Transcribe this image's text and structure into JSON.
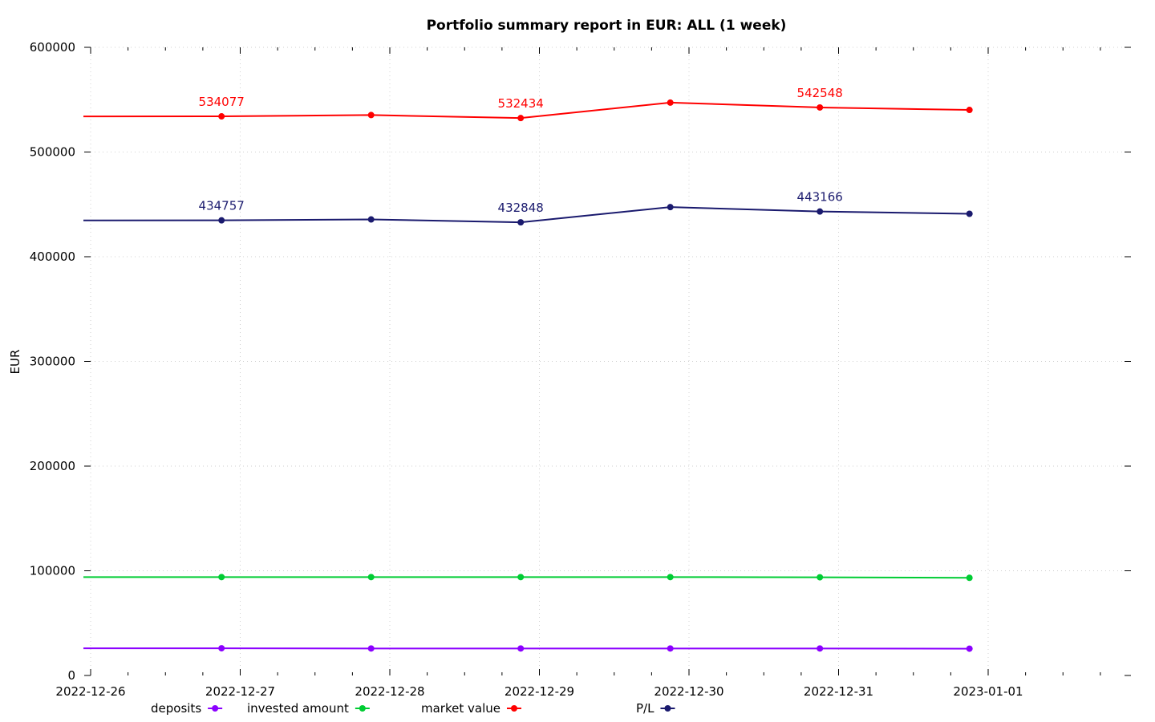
{
  "chart_data": {
    "type": "line",
    "title": "Portfolio summary report in EUR: ALL (1 week)",
    "xlabel": "",
    "ylabel": "EUR",
    "ylim": [
      0,
      600000
    ],
    "yticks": [
      0,
      100000,
      200000,
      300000,
      400000,
      500000,
      600000
    ],
    "xlim": [
      "2022-12-26",
      "2023-01-01T23:59"
    ],
    "xticks": [
      "2022-12-26",
      "2022-12-27",
      "2022-12-28",
      "2022-12-29",
      "2022-12-30",
      "2022-12-31",
      "2023-01-01"
    ],
    "grid": true,
    "legend_position": "bottom",
    "x": [
      "2022-12-26",
      "2022-12-27",
      "2022-12-28",
      "2022-12-29",
      "2022-12-30",
      "2022-12-31",
      "2023-01-01"
    ],
    "series": [
      {
        "name": "deposits",
        "color": "#8b00ff",
        "values": [
          26000,
          26000,
          25800,
          25800,
          25800,
          25800,
          25600
        ],
        "labels": []
      },
      {
        "name": "invested amount",
        "color": "#00cc33",
        "values": [
          94000,
          94000,
          94000,
          94000,
          94000,
          93800,
          93300
        ],
        "labels": []
      },
      {
        "name": "market value",
        "color": "#ff0000",
        "values": [
          534000,
          534077,
          535300,
          532434,
          547200,
          542548,
          540200
        ],
        "labels": [
          {
            "index": 1,
            "text": "534077"
          },
          {
            "index": 3,
            "text": "532434"
          },
          {
            "index": 5,
            "text": "542548"
          }
        ]
      },
      {
        "name": "P/L",
        "color": "#1a1a6e",
        "values": [
          434700,
          434757,
          435600,
          432848,
          447400,
          443166,
          441000
        ],
        "labels": [
          {
            "index": 1,
            "text": "434757"
          },
          {
            "index": 3,
            "text": "432848"
          },
          {
            "index": 5,
            "text": "443166"
          }
        ]
      }
    ]
  }
}
